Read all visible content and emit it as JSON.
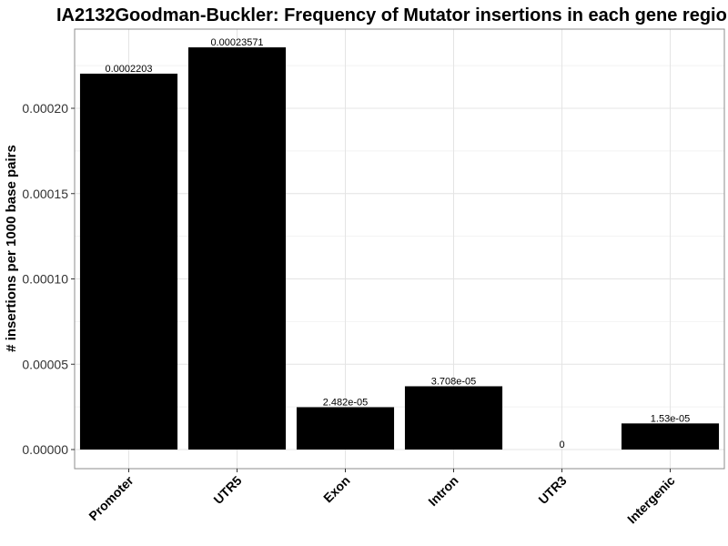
{
  "chart_data": {
    "type": "bar",
    "title": "IA2132Goodman-Buckler: Frequency of Mutator insertions in each gene regio",
    "xlabel": "",
    "ylabel": "# insertions per 1000 base pairs",
    "categories": [
      "Promoter",
      "UTR5",
      "Exon",
      "Intron",
      "UTR3",
      "Intergenic"
    ],
    "values": [
      0.0002203,
      0.00023571,
      2.482e-05,
      3.708e-05,
      0,
      1.53e-05
    ],
    "data_labels": [
      "0.0002203",
      "0.00023571",
      "2.482e-05",
      "3.708e-05",
      "0",
      "1.53e-05"
    ],
    "yticks": [
      0,
      5e-05,
      0.0001,
      0.00015,
      0.0002
    ],
    "ytick_labels": [
      "0.00000",
      "0.00005",
      "0.00010",
      "0.00015",
      "0.00020"
    ],
    "ylim": [
      -1.15e-05,
      2.35e-05
    ],
    "ylim_note": "",
    "grid": true,
    "bar_color": "#000000"
  }
}
